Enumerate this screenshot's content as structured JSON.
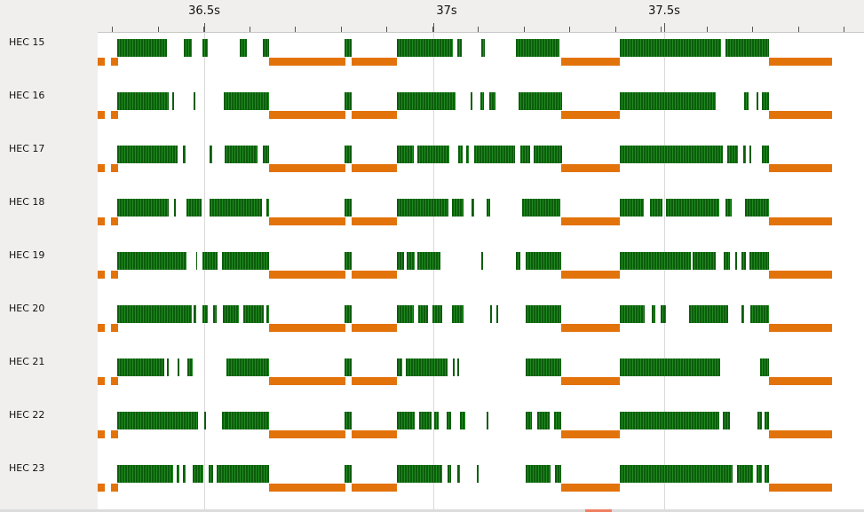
{
  "axis": {
    "labels": [
      "36.5s",
      "37s",
      "37.5s"
    ]
  },
  "rows": [
    {
      "label": "HEC 15"
    },
    {
      "label": "HEC 16"
    },
    {
      "label": "HEC 17"
    },
    {
      "label": "HEC 18"
    },
    {
      "label": "HEC 19"
    },
    {
      "label": "HEC 20"
    },
    {
      "label": "HEC 21"
    },
    {
      "label": "HEC 22"
    },
    {
      "label": "HEC 23"
    }
  ],
  "colors": {
    "activity": "#137313",
    "allocation": "#e2730b",
    "background": "#ffffff",
    "panel": "#f0efee",
    "marker": "#ef7f62"
  }
}
